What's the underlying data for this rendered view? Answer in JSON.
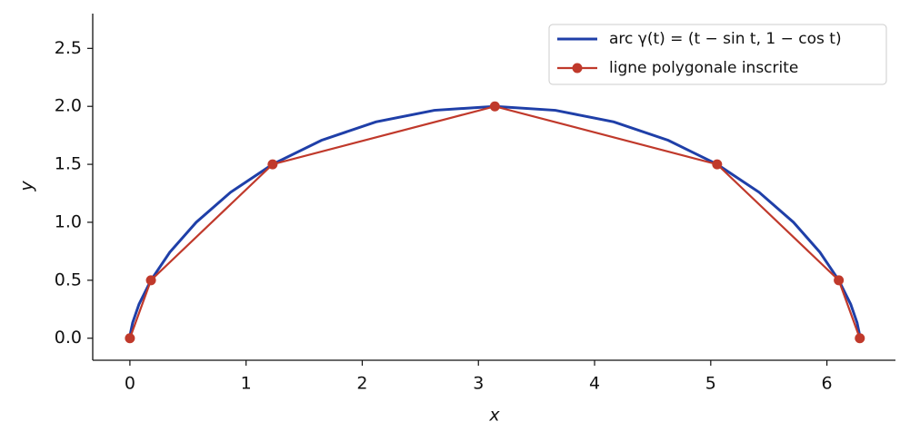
{
  "chart_data": {
    "type": "line",
    "xlabel": "x",
    "ylabel": "y",
    "series": [
      {
        "name": "arc γ(t) = (t − sin t,  1 − cos t)",
        "color": "#1f3fa8",
        "marker": false,
        "x": [
          0,
          0.003,
          0.0236,
          0.0783,
          0.1812,
          0.3431,
          0.5708,
          0.8667,
          1.2284,
          1.6491,
          2.118,
          2.621,
          3.1416,
          3.6622,
          4.1652,
          4.6341,
          5.0548,
          5.4165,
          5.7124,
          5.9401,
          6.102,
          6.2049,
          6.2596,
          6.2802,
          6.2832
        ],
        "values": [
          0,
          0.0341,
          0.134,
          0.2929,
          0.5,
          0.7412,
          1,
          1.2588,
          1.5,
          1.7071,
          1.866,
          1.9659,
          2,
          1.9659,
          1.866,
          1.7071,
          1.5,
          1.2588,
          1,
          0.7412,
          0.5,
          0.2929,
          0.134,
          0.0341,
          0
        ]
      },
      {
        "name": "ligne polygonale inscrite",
        "color": "#c0392b",
        "marker": true,
        "x": [
          0,
          0.1812,
          1.2284,
          3.1416,
          5.0548,
          6.102,
          6.2832
        ],
        "values": [
          0,
          0.5,
          1.5,
          2,
          1.5,
          0.5,
          0
        ]
      }
    ],
    "xlim": [
      -0.32,
      6.59
    ],
    "ylim": [
      -0.19,
      2.8
    ],
    "xticks": [
      0,
      1,
      2,
      3,
      4,
      5,
      6
    ],
    "yticks": [
      {
        "value": 0,
        "label": "0.0"
      },
      {
        "value": 0.5,
        "label": "0.5"
      },
      {
        "value": 1,
        "label": "1.0"
      },
      {
        "value": 1.5,
        "label": "1.5"
      },
      {
        "value": 2,
        "label": "2.0"
      },
      {
        "value": 2.5,
        "label": "2.5"
      }
    ],
    "grid": false,
    "legend": "upper right"
  }
}
